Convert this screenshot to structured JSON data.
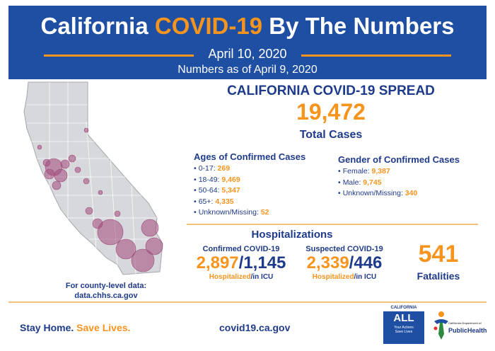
{
  "header": {
    "title_prefix": "California",
    "title_highlight": "COVID-19",
    "title_suffix": "By The Numbers",
    "date": "April 10, 2020",
    "as_of": "Numbers as of April 9, 2020"
  },
  "map": {
    "caption_line1": "For county-level data:",
    "caption_line2": "data.chhs.ca.gov",
    "bubble_color": "#a0497a"
  },
  "spread": {
    "title": "CALIFORNIA COVID-19 SPREAD",
    "total_cases": "19,472",
    "total_label": "Total Cases"
  },
  "ages": {
    "heading": "Ages of Confirmed Cases",
    "items": [
      {
        "label": "0-17:",
        "value": "269"
      },
      {
        "label": "18-49:",
        "value": "9,469"
      },
      {
        "label": "50-64:",
        "value": "5,347"
      },
      {
        "label": "65+:",
        "value": "4,335"
      },
      {
        "label": "Unknown/Missing:",
        "value": "52"
      }
    ]
  },
  "gender": {
    "heading": "Gender of Confirmed Cases",
    "items": [
      {
        "label": "Female:",
        "value": "9,387"
      },
      {
        "label": "Male:",
        "value": "9,745"
      },
      {
        "label": "Unknown/Missing:",
        "value": "340"
      }
    ]
  },
  "hospitalizations": {
    "title": "Hospitalizations",
    "confirmed": {
      "label": "Confirmed COVID-19",
      "hospitalized": "2,897",
      "icu": "1,145",
      "sub_hosp": "Hospitalized",
      "sub_icu": "/in ICU"
    },
    "suspected": {
      "label": "Suspected COVID-19",
      "hospitalized": "2,339",
      "icu": "446",
      "sub_hosp": "Hospitalized",
      "sub_icu": "/in ICU"
    }
  },
  "fatalities": {
    "value": "541",
    "label": "Fatalities"
  },
  "footer": {
    "stay_home": "Stay Home.",
    "save_lives": "Save Lives.",
    "url": "covid19.ca.gov",
    "ca_all": {
      "top": "CALIFORNIA",
      "main": "ALL",
      "tag1": "Your Actions",
      "tag2": "Save Lives"
    },
    "cdph": {
      "line1": "PublicHealth",
      "small": "California Department of"
    }
  },
  "colors": {
    "brand_blue": "#1e4fa3",
    "accent_orange": "#f7941d",
    "text_navy": "#1e3a8a"
  }
}
